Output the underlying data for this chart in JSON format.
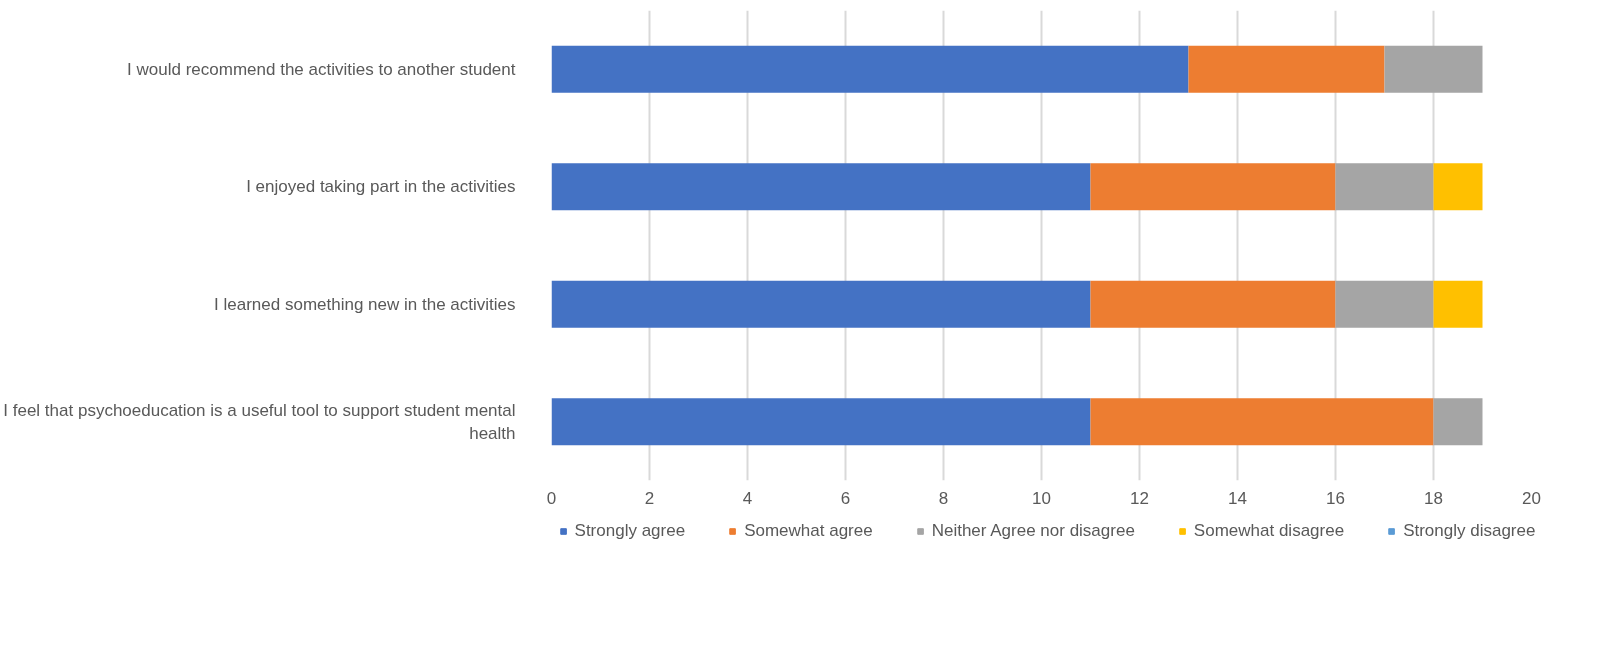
{
  "chart_data": {
    "type": "bar",
    "orientation": "horizontal",
    "stacked": true,
    "categories": [
      "I would recommend the activities to another student",
      "I enjoyed taking part in the activities",
      "I learned something new in the activities",
      "I feel that psychoeducation is a useful tool to support student mental health"
    ],
    "series": [
      {
        "name": "Strongly agree",
        "color": "#4472c4",
        "values": [
          13,
          11,
          11,
          11
        ]
      },
      {
        "name": "Somewhat agree",
        "color": "#ed7d31",
        "values": [
          4,
          5,
          5,
          7
        ]
      },
      {
        "name": "Neither Agree nor disagree",
        "color": "#a5a5a5",
        "values": [
          2,
          2,
          2,
          1
        ]
      },
      {
        "name": "Somewhat disagree",
        "color": "#ffc000",
        "values": [
          0,
          1,
          1,
          0
        ]
      },
      {
        "name": "Strongly disagree",
        "color": "#5b9bd5",
        "values": [
          0,
          0,
          0,
          0
        ]
      }
    ],
    "xlim": [
      0,
      20
    ],
    "xticks": [
      0,
      2,
      4,
      6,
      8,
      10,
      12,
      14,
      16,
      18,
      20
    ],
    "grid": "x",
    "legend": "bottom"
  }
}
